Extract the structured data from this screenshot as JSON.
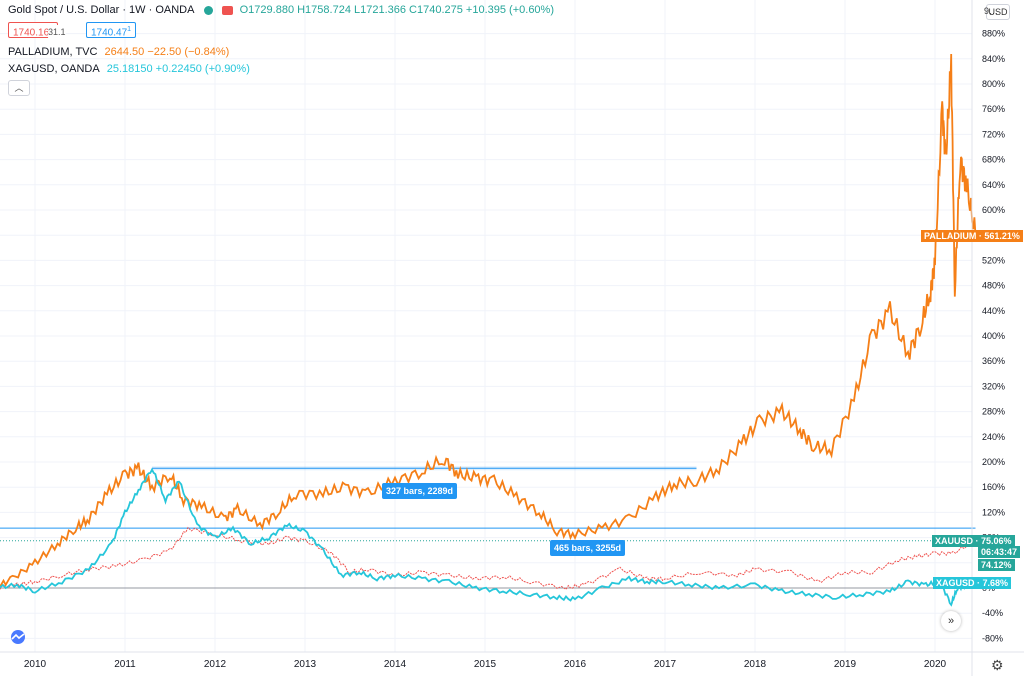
{
  "header": {
    "title": "Gold Spot / U.S. Dollar · 1W · OANDA",
    "ohlc": "O1729.880 H1758.724 L1721.366 C1740.275 +10.395 (+0.60%)",
    "sell_price": "1740.16",
    "sell_superscript": "0",
    "spread": "31.1",
    "buy_price": "1740.47",
    "buy_superscript": "1",
    "collapse_icon": "chevron-up-icon"
  },
  "legend": {
    "palladium": {
      "name": "PALLADIUM, TVC",
      "value": "2644.50 −22.50 (−0.84%)",
      "color": "#f57f17"
    },
    "xagusd": {
      "name": "XAGUSD, OANDA",
      "value": "25.18150 +0.22450 (+0.90%)",
      "color": "#26c6da"
    }
  },
  "price_axis": {
    "currency_button": "USD",
    "top_label": "9…"
  },
  "tags": {
    "palladium": "PALLADIUM",
    "palladium_value": "561.21%",
    "xauusd": "XAUUSD",
    "xauusd_value": "75.06%",
    "countdown": "06:43:47",
    "xau_close": "74.12%",
    "xagusd": "XAGUSD",
    "xagusd_value": "7.68%"
  },
  "measures": {
    "upper": "327 bars, 2289d",
    "lower": "465 bars, 3255d"
  },
  "controls": {
    "scroll_icon": "double-chevron-right-icon",
    "settings_icon": "gear-icon",
    "logo_icon": "tradingview-logo-icon"
  },
  "colors": {
    "palladium": "#f57f17",
    "silver": "#26c6da",
    "gold_up": "#26a69a",
    "gold_down": "#ef5350",
    "measure": "#2196f3",
    "grid": "#f0f3fa"
  },
  "chart_data": {
    "type": "line",
    "title": "Gold Spot / U.S. Dollar · 1W · OANDA",
    "y_unit": "%",
    "ylim": [
      -90,
      960
    ],
    "yticks": [
      -80,
      -40,
      0,
      40,
      80,
      120,
      160,
      200,
      240,
      280,
      320,
      360,
      400,
      440,
      480,
      520,
      560,
      600,
      640,
      680,
      720,
      760,
      800,
      840,
      880
    ],
    "xlim": [
      2009.55,
      2020.5
    ],
    "xticks": [
      "2010",
      "2011",
      "2012",
      "2013",
      "2014",
      "2015",
      "2016",
      "2017",
      "2018",
      "2019",
      "2020"
    ],
    "series": [
      {
        "name": "PALLADIUM",
        "color": "#f57f17",
        "x": [
          2009.55,
          2009.75,
          2010.0,
          2010.25,
          2010.45,
          2010.6,
          2010.8,
          2011.0,
          2011.15,
          2011.3,
          2011.5,
          2011.65,
          2011.85,
          2012.1,
          2012.25,
          2012.5,
          2012.7,
          2012.9,
          2013.2,
          2013.45,
          2013.7,
          2014.0,
          2014.3,
          2014.55,
          2014.7,
          2014.9,
          2015.1,
          2015.35,
          2015.6,
          2015.8,
          2016.0,
          2016.3,
          2016.6,
          2016.9,
          2017.1,
          2017.35,
          2017.6,
          2017.85,
          2018.05,
          2018.3,
          2018.5,
          2018.65,
          2018.85,
          2019.1,
          2019.3,
          2019.5,
          2019.7,
          2019.85,
          2019.95,
          2020.0,
          2020.08,
          2020.12,
          2020.18,
          2020.22,
          2020.28,
          2020.35,
          2020.45
        ],
        "values": [
          0,
          15,
          40,
          70,
          95,
          110,
          150,
          180,
          190,
          160,
          180,
          140,
          130,
          110,
          125,
          100,
          120,
          150,
          150,
          160,
          150,
          170,
          185,
          205,
          180,
          175,
          170,
          145,
          120,
          90,
          85,
          95,
          110,
          145,
          165,
          170,
          190,
          230,
          265,
          280,
          250,
          225,
          220,
          300,
          400,
          440,
          370,
          420,
          470,
          520,
          760,
          680,
          835,
          470,
          680,
          640,
          560
        ]
      },
      {
        "name": "XAUUSD",
        "color": "#ef5350",
        "x": [
          2009.55,
          2009.8,
          2010.0,
          2010.3,
          2010.6,
          2010.9,
          2011.2,
          2011.5,
          2011.7,
          2012.0,
          2012.3,
          2012.6,
          2012.8,
          2013.0,
          2013.3,
          2013.5,
          2013.7,
          2014.0,
          2014.3,
          2014.6,
          2014.9,
          2015.2,
          2015.5,
          2015.9,
          2016.1,
          2016.5,
          2016.8,
          2017.0,
          2017.4,
          2017.8,
          2018.0,
          2018.4,
          2018.7,
          2019.0,
          2019.3,
          2019.6,
          2019.8,
          2020.0,
          2020.2,
          2020.45
        ],
        "values": [
          0,
          5,
          10,
          20,
          30,
          35,
          45,
          60,
          95,
          85,
          75,
          70,
          80,
          75,
          55,
          25,
          30,
          20,
          25,
          20,
          15,
          18,
          10,
          0,
          5,
          30,
          15,
          15,
          25,
          20,
          30,
          25,
          10,
          25,
          25,
          45,
          50,
          55,
          55,
          75
        ]
      },
      {
        "name": "XAGUSD",
        "color": "#26c6da",
        "x": [
          2009.55,
          2009.8,
          2010.0,
          2010.3,
          2010.6,
          2010.85,
          2011.0,
          2011.15,
          2011.3,
          2011.45,
          2011.6,
          2011.8,
          2012.0,
          2012.2,
          2012.4,
          2012.6,
          2012.8,
          2013.0,
          2013.2,
          2013.4,
          2013.6,
          2013.8,
          2014.0,
          2014.3,
          2014.6,
          2014.9,
          2015.2,
          2015.5,
          2015.8,
          2016.0,
          2016.3,
          2016.6,
          2016.8,
          2017.0,
          2017.3,
          2017.6,
          2018.0,
          2018.3,
          2018.6,
          2018.9,
          2019.2,
          2019.5,
          2019.7,
          2019.9,
          2020.05,
          2020.18,
          2020.25,
          2020.35,
          2020.45
        ],
        "values": [
          0,
          5,
          -5,
          10,
          30,
          70,
          120,
          155,
          190,
          140,
          170,
          100,
          80,
          95,
          70,
          80,
          100,
          90,
          60,
          20,
          25,
          15,
          20,
          15,
          10,
          0,
          -5,
          -10,
          -15,
          -18,
          0,
          15,
          10,
          10,
          5,
          0,
          5,
          -5,
          -10,
          -15,
          -10,
          -5,
          10,
          5,
          10,
          -25,
          0,
          5,
          8
        ]
      }
    ],
    "reference_lines": [
      {
        "name": "upper-range",
        "value": 190,
        "x_from": 2011.3,
        "x_to": 2017.35,
        "color": "#2196f3"
      },
      {
        "name": "lower-range",
        "value": 95,
        "x_from": 2009.55,
        "x_to": 2020.45,
        "color": "#2196f3"
      },
      {
        "name": "zero-baseline",
        "value": 0,
        "color": "#9598a1"
      }
    ]
  }
}
